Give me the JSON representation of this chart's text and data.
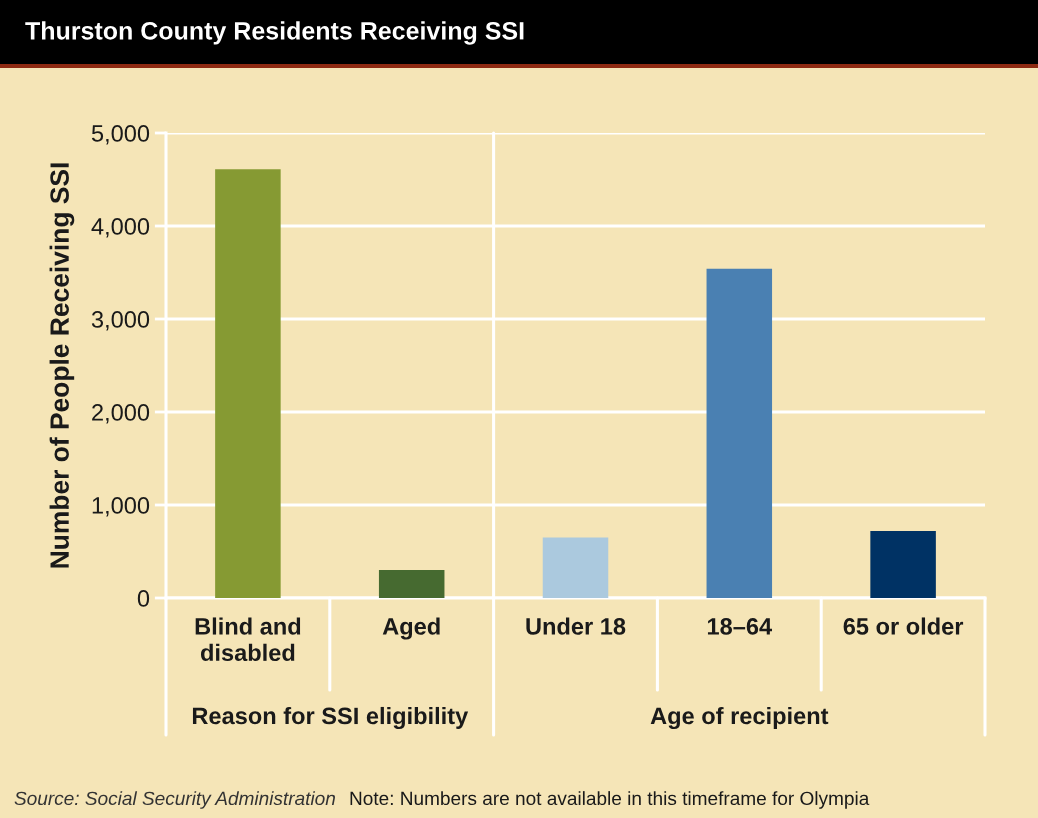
{
  "chart_data": {
    "type": "bar",
    "title": "Thurston County Residents Receiving SSI",
    "ylabel": "Number of People Receiving SSI",
    "categories": [
      "Blind and disabled",
      "Aged",
      "Under 18",
      "18–64",
      "65 or older"
    ],
    "values": [
      4610,
      300,
      650,
      3540,
      720
    ],
    "colors": [
      "#869a33",
      "#466a30",
      "#abc9de",
      "#4a80b2",
      "#003264"
    ],
    "ylim": [
      0,
      5000
    ],
    "yticks": [
      0,
      {
        "value": 1000,
        "label": "1,000"
      },
      {
        "value": 2000,
        "label": "2,000"
      },
      {
        "value": 3000,
        "label": "3,000"
      },
      {
        "value": 4000,
        "label": "4,000"
      },
      {
        "value": 5000,
        "label": "5,000"
      }
    ],
    "grid": "y",
    "annotations": [
      "Reason for SSI eligibility",
      "Age of recipient",
      "Source: Social Security Administration",
      "Note: Numbers are not available in this timeframe for Olympia"
    ]
  }
}
